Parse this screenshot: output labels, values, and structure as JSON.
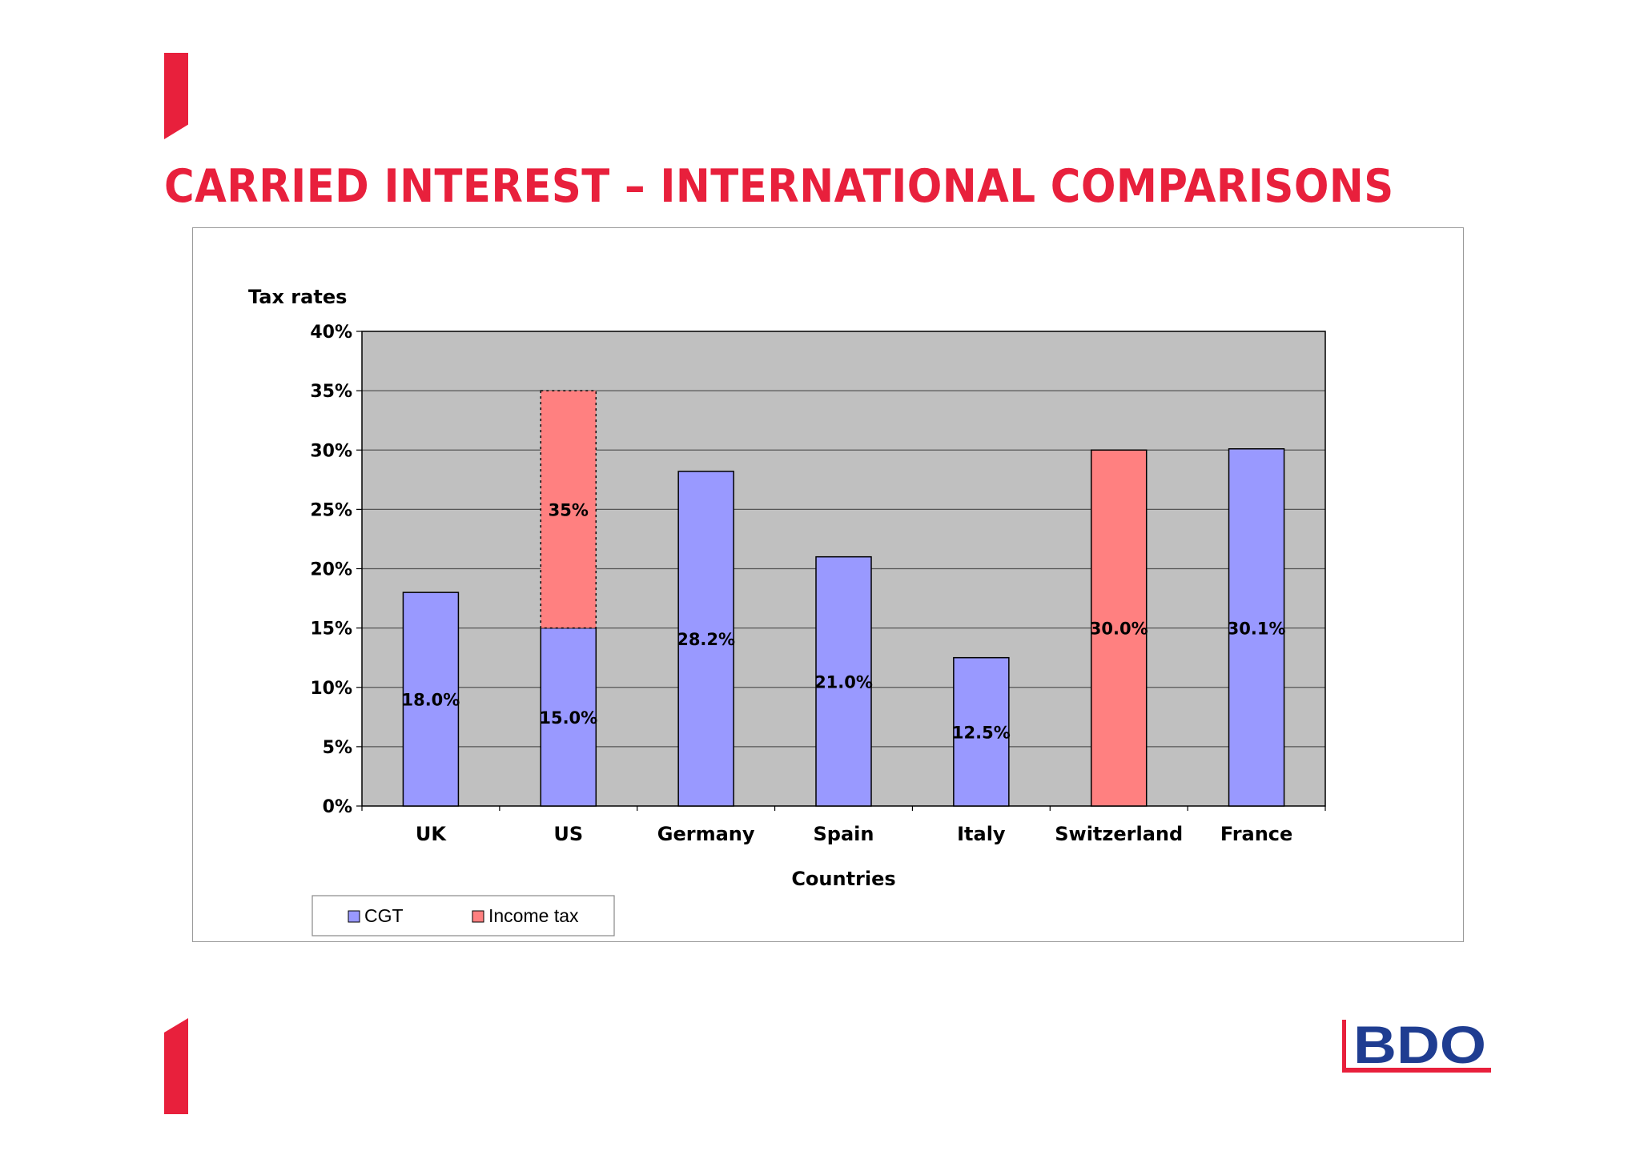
{
  "slide": {
    "title": "CARRIED INTEREST – INTERNATIONAL COMPARISONS",
    "accent_color": "#e8203c"
  },
  "logo": {
    "text": "BDO",
    "color": "#1f3d91",
    "underline_color": "#e8203c"
  },
  "chart_data": {
    "type": "bar",
    "stacked": true,
    "title": "",
    "ylabel": "Tax rates",
    "xlabel": "Countries",
    "ylim": [
      0,
      0.4
    ],
    "yticks": [
      "0%",
      "5%",
      "10%",
      "15%",
      "20%",
      "25%",
      "30%",
      "35%",
      "40%"
    ],
    "grid": true,
    "legend_position": "bottom-left",
    "categories": [
      "UK",
      "US",
      "Germany",
      "Spain",
      "Italy",
      "Switzerland",
      "France"
    ],
    "series": [
      {
        "name": "CGT",
        "color": "#9999ff",
        "values": [
          0.18,
          0.15,
          0.282,
          0.21,
          0.125,
          null,
          0.301
        ],
        "labels": [
          "18.0%",
          "15.0%",
          "28.2%",
          "21.0%",
          "12.5%",
          null,
          "30.1%"
        ]
      },
      {
        "name": "Income tax",
        "color": "#ff8080",
        "values": [
          null,
          0.2,
          null,
          null,
          null,
          0.3,
          null
        ],
        "labels": [
          null,
          "35%",
          null,
          null,
          null,
          "30.0%",
          null
        ]
      }
    ],
    "annotations": [
      "US income tax segment drawn with dotted outline"
    ]
  }
}
